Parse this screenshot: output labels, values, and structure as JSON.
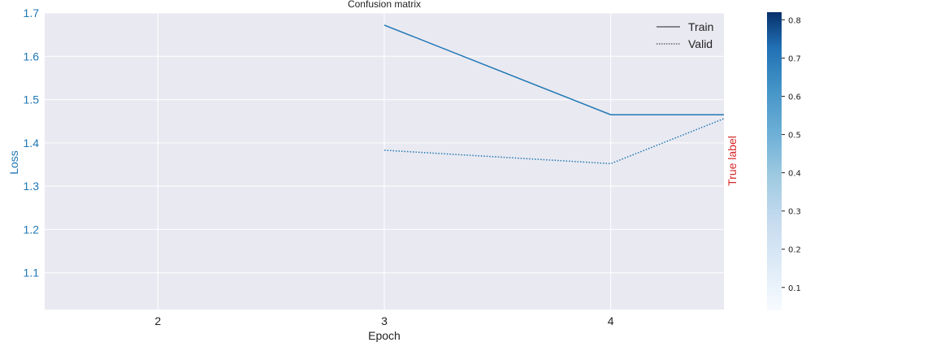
{
  "chart_data": {
    "type": "line",
    "title": "Confusion matrix",
    "xlabel": "Epoch",
    "ylabel": "Loss",
    "right_label": "True label",
    "xlim": [
      1.5,
      4.5
    ],
    "ylim": [
      1.015,
      1.7
    ],
    "x_ticks": [
      "2",
      "3",
      "4"
    ],
    "y_ticks": [
      "1.1",
      "1.2",
      "1.3",
      "1.4",
      "1.5",
      "1.6",
      "1.7"
    ],
    "grid": true,
    "legend_position": "top-right",
    "series": [
      {
        "name": "Train",
        "linestyle": "solid",
        "color": "#1f77b4",
        "x": [
          3,
          4,
          5
        ],
        "y": [
          1.672,
          1.465,
          1.465
        ]
      },
      {
        "name": "Valid",
        "linestyle": "dotted",
        "color": "#1f77b4",
        "x": [
          3,
          4,
          5
        ],
        "y": [
          1.383,
          1.352,
          1.56
        ]
      }
    ],
    "colorbar": {
      "colormap": "Blues",
      "range": [
        0.04,
        0.82
      ],
      "ticks": [
        "0.1",
        "0.2",
        "0.3",
        "0.4",
        "0.5",
        "0.6",
        "0.7",
        "0.8"
      ]
    },
    "colors": {
      "axis_label": "#1f77b4",
      "right_label": "#d62728",
      "plot_background": "#e9e9f1",
      "grid": "#ffffff"
    }
  }
}
